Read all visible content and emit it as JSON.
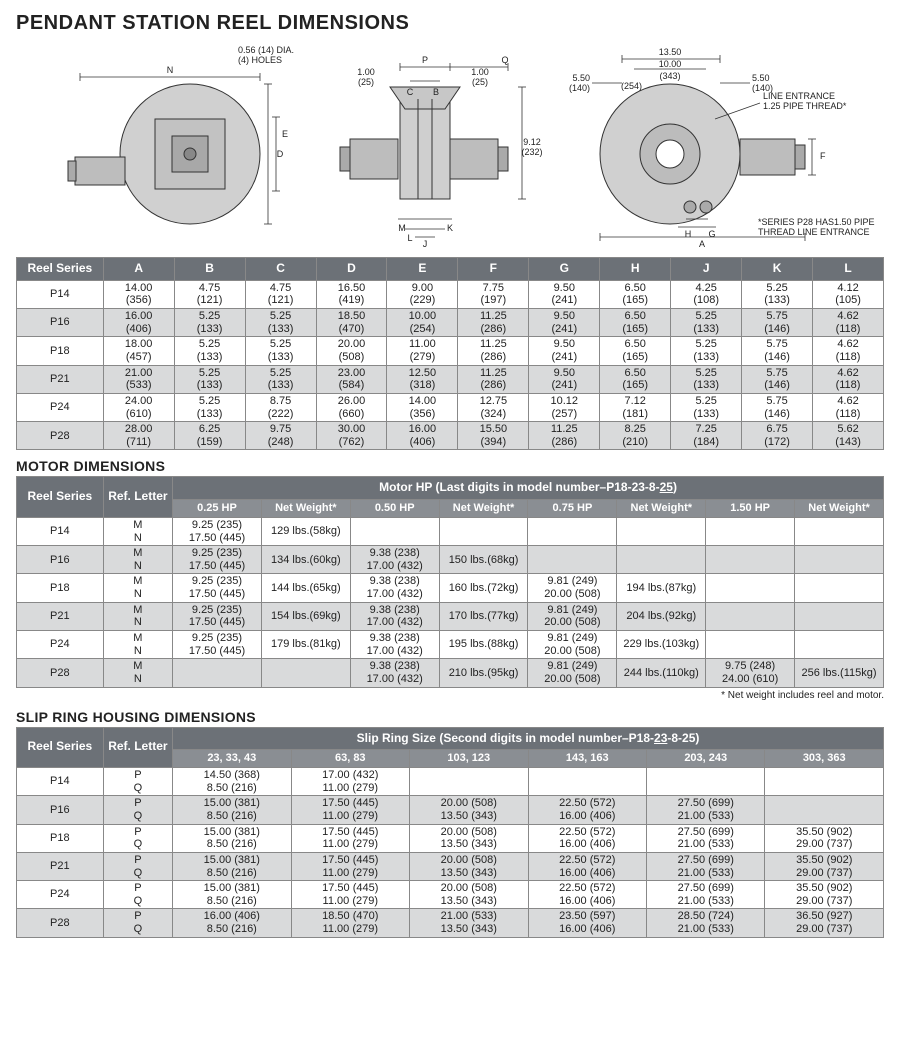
{
  "title": "PENDANT STATION REEL DIMENSIONS",
  "section_titles": {
    "motor": "MOTOR DIMENSIONS",
    "slip": "SLIP RING HOUSING DIMENSIONS"
  },
  "diagram_labels": {
    "holes": [
      "0.56 (14) DIA.",
      "(4) HOLES"
    ],
    "N": "N",
    "E": "E",
    "D": "D",
    "P": "P",
    "Q": "Q",
    "C": "C",
    "B": "B",
    "M": "M",
    "L": "L",
    "J": "J",
    "K": "K",
    "A": "A",
    "H": "H",
    "G": "G",
    "F": "F",
    "one_in": "1.00",
    "one_mm": "(25)",
    "h912": "9.12",
    "h912mm": "(232)",
    "d1350": "13.50",
    "d1350mm": "(343)",
    "d1000": "10.00",
    "d1000mm": "(254)",
    "d550": "5.50",
    "d550mm": "(140)",
    "line_ent": [
      "LINE ENTRANCE",
      "1.25 PIPE THREAD*"
    ],
    "footnote": [
      "*SERIES P28 HAS1.50 PIPE",
      "THREAD LINE ENTRANCE"
    ]
  },
  "reel_table": {
    "headers": [
      "Reel Series",
      "A",
      "B",
      "C",
      "D",
      "E",
      "F",
      "G",
      "H",
      "J",
      "K",
      "L"
    ],
    "rows": [
      {
        "s": "P14",
        "v": [
          [
            "14.00",
            "(356)"
          ],
          [
            "4.75",
            "(121)"
          ],
          [
            "4.75",
            "(121)"
          ],
          [
            "16.50",
            "(419)"
          ],
          [
            "9.00",
            "(229)"
          ],
          [
            "7.75",
            "(197)"
          ],
          [
            "9.50",
            "(241)"
          ],
          [
            "6.50",
            "(165)"
          ],
          [
            "4.25",
            "(108)"
          ],
          [
            "5.25",
            "(133)"
          ],
          [
            "4.12",
            "(105)"
          ]
        ]
      },
      {
        "s": "P16",
        "v": [
          [
            "16.00",
            "(406)"
          ],
          [
            "5.25",
            "(133)"
          ],
          [
            "5.25",
            "(133)"
          ],
          [
            "18.50",
            "(470)"
          ],
          [
            "10.00",
            "(254)"
          ],
          [
            "11.25",
            "(286)"
          ],
          [
            "9.50",
            "(241)"
          ],
          [
            "6.50",
            "(165)"
          ],
          [
            "5.25",
            "(133)"
          ],
          [
            "5.75",
            "(146)"
          ],
          [
            "4.62",
            "(118)"
          ]
        ]
      },
      {
        "s": "P18",
        "v": [
          [
            "18.00",
            "(457)"
          ],
          [
            "5.25",
            "(133)"
          ],
          [
            "5.25",
            "(133)"
          ],
          [
            "20.00",
            "(508)"
          ],
          [
            "11.00",
            "(279)"
          ],
          [
            "11.25",
            "(286)"
          ],
          [
            "9.50",
            "(241)"
          ],
          [
            "6.50",
            "(165)"
          ],
          [
            "5.25",
            "(133)"
          ],
          [
            "5.75",
            "(146)"
          ],
          [
            "4.62",
            "(118)"
          ]
        ]
      },
      {
        "s": "P21",
        "v": [
          [
            "21.00",
            "(533)"
          ],
          [
            "5.25",
            "(133)"
          ],
          [
            "5.25",
            "(133)"
          ],
          [
            "23.00",
            "(584)"
          ],
          [
            "12.50",
            "(318)"
          ],
          [
            "11.25",
            "(286)"
          ],
          [
            "9.50",
            "(241)"
          ],
          [
            "6.50",
            "(165)"
          ],
          [
            "5.25",
            "(133)"
          ],
          [
            "5.75",
            "(146)"
          ],
          [
            "4.62",
            "(118)"
          ]
        ]
      },
      {
        "s": "P24",
        "v": [
          [
            "24.00",
            "(610)"
          ],
          [
            "5.25",
            "(133)"
          ],
          [
            "8.75",
            "(222)"
          ],
          [
            "26.00",
            "(660)"
          ],
          [
            "14.00",
            "(356)"
          ],
          [
            "12.75",
            "(324)"
          ],
          [
            "10.12",
            "(257)"
          ],
          [
            "7.12",
            "(181)"
          ],
          [
            "5.25",
            "(133)"
          ],
          [
            "5.75",
            "(146)"
          ],
          [
            "4.62",
            "(118)"
          ]
        ]
      },
      {
        "s": "P28",
        "v": [
          [
            "28.00",
            "(711)"
          ],
          [
            "6.25",
            "(159)"
          ],
          [
            "9.75",
            "(248)"
          ],
          [
            "30.00",
            "(762)"
          ],
          [
            "16.00",
            "(406)"
          ],
          [
            "15.50",
            "(394)"
          ],
          [
            "11.25",
            "(286)"
          ],
          [
            "8.25",
            "(210)"
          ],
          [
            "7.25",
            "(184)"
          ],
          [
            "6.75",
            "(172)"
          ],
          [
            "5.62",
            "(143)"
          ]
        ]
      }
    ]
  },
  "motor_table": {
    "super_header": "Motor HP (Last digits in model number–P18-23-8-",
    "super_header_bold": "25",
    "super_header_end": ")",
    "headers": [
      "Reel Series",
      "Ref. Letter",
      "0.25 HP",
      "Net Weight*",
      "0.50 HP",
      "Net Weight*",
      "0.75 HP",
      "Net Weight*",
      "1.50 HP",
      "Net Weight*"
    ],
    "ref_letters": [
      "M",
      "N"
    ],
    "rows": [
      {
        "s": "P14",
        "hp025": [
          "9.25 (235)",
          "17.50 (445)"
        ],
        "w025": "129 lbs.(58kg)",
        "hp050": [
          "",
          ""
        ],
        "w050": "",
        "hp075": [
          "",
          ""
        ],
        "w075": "",
        "hp150": [
          "",
          ""
        ],
        "w150": ""
      },
      {
        "s": "P16",
        "hp025": [
          "9.25 (235)",
          "17.50 (445)"
        ],
        "w025": "134 lbs.(60kg)",
        "hp050": [
          "9.38 (238)",
          "17.00 (432)"
        ],
        "w050": "150 lbs.(68kg)",
        "hp075": [
          "",
          ""
        ],
        "w075": "",
        "hp150": [
          "",
          ""
        ],
        "w150": ""
      },
      {
        "s": "P18",
        "hp025": [
          "9.25 (235)",
          "17.50 (445)"
        ],
        "w025": "144 lbs.(65kg)",
        "hp050": [
          "9.38 (238)",
          "17.00 (432)"
        ],
        "w050": "160 lbs.(72kg)",
        "hp075": [
          "9.81 (249)",
          "20.00 (508)"
        ],
        "w075": "194 lbs.(87kg)",
        "hp150": [
          "",
          ""
        ],
        "w150": ""
      },
      {
        "s": "P21",
        "hp025": [
          "9.25 (235)",
          "17.50 (445)"
        ],
        "w025": "154 lbs.(69kg)",
        "hp050": [
          "9.38 (238)",
          "17.00 (432)"
        ],
        "w050": "170 lbs.(77kg)",
        "hp075": [
          "9.81 (249)",
          "20.00 (508)"
        ],
        "w075": "204 lbs.(92kg)",
        "hp150": [
          "",
          ""
        ],
        "w150": ""
      },
      {
        "s": "P24",
        "hp025": [
          "9.25 (235)",
          "17.50 (445)"
        ],
        "w025": "179 lbs.(81kg)",
        "hp050": [
          "9.38 (238)",
          "17.00 (432)"
        ],
        "w050": "195 lbs.(88kg)",
        "hp075": [
          "9.81 (249)",
          "20.00 (508)"
        ],
        "w075": "229 lbs.(103kg)",
        "hp150": [
          "",
          ""
        ],
        "w150": ""
      },
      {
        "s": "P28",
        "hp025": [
          "",
          ""
        ],
        "w025": "",
        "hp050": [
          "9.38 (238)",
          "17.00 (432)"
        ],
        "w050": "210 lbs.(95kg)",
        "hp075": [
          "9.81 (249)",
          "20.00 (508)"
        ],
        "w075": "244 lbs.(110kg)",
        "hp150": [
          "9.75 (248)",
          "24.00 (610)"
        ],
        "w150": "256 lbs.(115kg)"
      }
    ],
    "footnote": "* Net weight includes reel and motor."
  },
  "slip_table": {
    "super_header": "Slip Ring Size (Second digits in model number–P18-",
    "super_header_bold": "23",
    "super_header_end": "-8-25)",
    "headers": [
      "Reel Series",
      "Ref. Letter",
      "23, 33, 43",
      "63, 83",
      "103, 123",
      "143, 163",
      "203, 243",
      "303, 363"
    ],
    "ref_letters": [
      "P",
      "Q"
    ],
    "rows": [
      {
        "s": "P14",
        "v": [
          [
            "14.50 (368)",
            "8.50 (216)"
          ],
          [
            "17.00 (432)",
            "11.00 (279)"
          ],
          [
            "",
            ""
          ],
          [
            "",
            ""
          ],
          [
            "",
            ""
          ],
          [
            "",
            ""
          ]
        ]
      },
      {
        "s": "P16",
        "v": [
          [
            "15.00 (381)",
            "8.50 (216)"
          ],
          [
            "17.50 (445)",
            "11.00 (279)"
          ],
          [
            "20.00 (508)",
            "13.50 (343)"
          ],
          [
            "22.50 (572)",
            "16.00 (406)"
          ],
          [
            "27.50 (699)",
            "21.00 (533)"
          ],
          [
            "",
            ""
          ]
        ]
      },
      {
        "s": "P18",
        "v": [
          [
            "15.00 (381)",
            "8.50 (216)"
          ],
          [
            "17.50 (445)",
            "11.00 (279)"
          ],
          [
            "20.00 (508)",
            "13.50 (343)"
          ],
          [
            "22.50 (572)",
            "16.00 (406)"
          ],
          [
            "27.50 (699)",
            "21.00 (533)"
          ],
          [
            "35.50 (902)",
            "29.00 (737)"
          ]
        ]
      },
      {
        "s": "P21",
        "v": [
          [
            "15.00 (381)",
            "8.50 (216)"
          ],
          [
            "17.50 (445)",
            "11.00 (279)"
          ],
          [
            "20.00 (508)",
            "13.50 (343)"
          ],
          [
            "22.50 (572)",
            "16.00 (406)"
          ],
          [
            "27.50 (699)",
            "21.00 (533)"
          ],
          [
            "35.50 (902)",
            "29.00 (737)"
          ]
        ]
      },
      {
        "s": "P24",
        "v": [
          [
            "15.00 (381)",
            "8.50 (216)"
          ],
          [
            "17.50 (445)",
            "11.00 (279)"
          ],
          [
            "20.00 (508)",
            "13.50 (343)"
          ],
          [
            "22.50 (572)",
            "16.00 (406)"
          ],
          [
            "27.50 (699)",
            "21.00 (533)"
          ],
          [
            "35.50 (902)",
            "29.00 (737)"
          ]
        ]
      },
      {
        "s": "P28",
        "v": [
          [
            "16.00 (406)",
            "8.50 (216)"
          ],
          [
            "18.50 (470)",
            "11.00 (279)"
          ],
          [
            "21.00 (533)",
            "13.50 (343)"
          ],
          [
            "23.50 (597)",
            "16.00 (406)"
          ],
          [
            "28.50 (724)",
            "21.00 (533)"
          ],
          [
            "36.50 (927)",
            "29.00 (737)"
          ]
        ]
      }
    ]
  },
  "colors": {
    "header_bg": "#6c7177",
    "sub_bg": "#8a8e93",
    "shade": "#d9dadb",
    "line": "#888"
  }
}
